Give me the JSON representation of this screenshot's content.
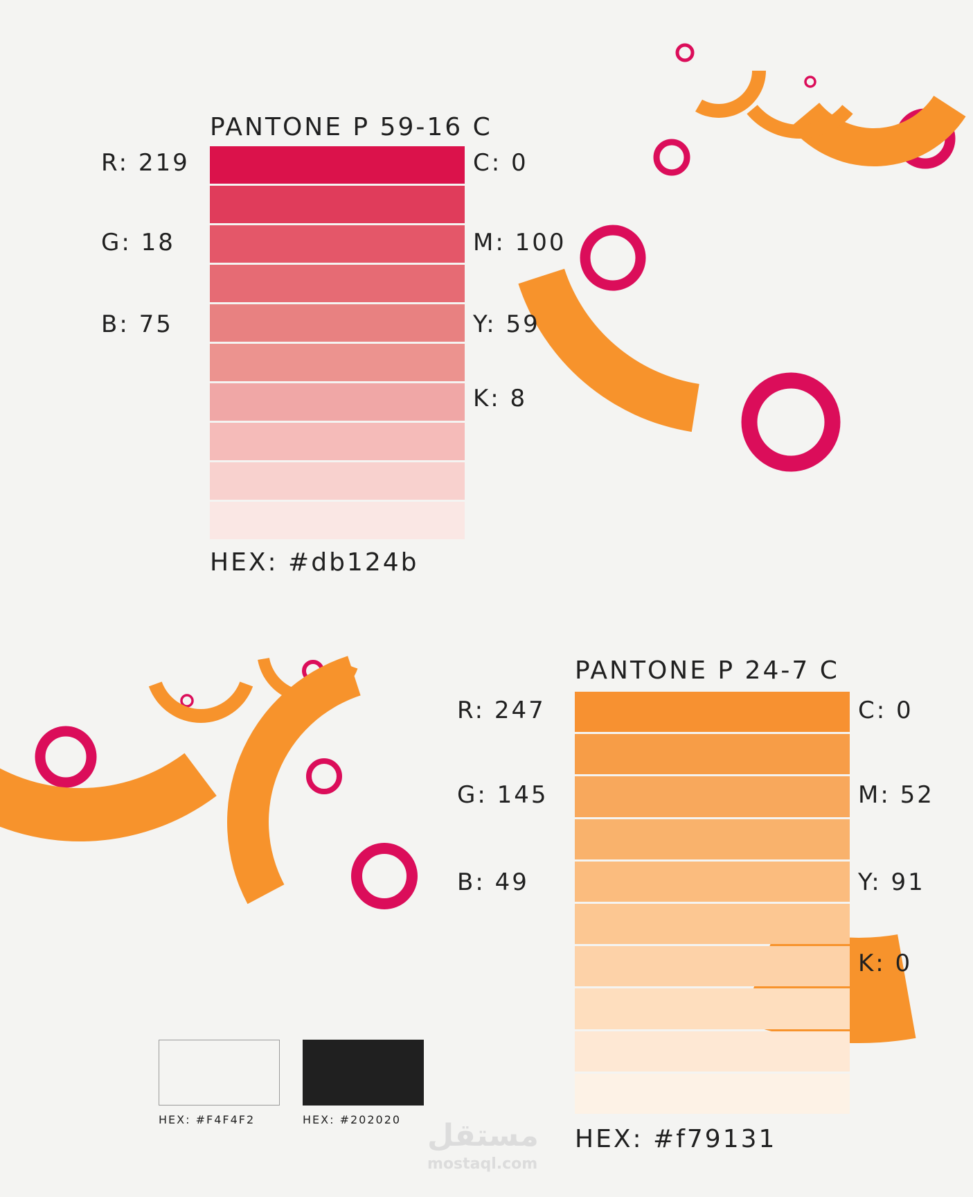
{
  "background_color": "#f4f4f2",
  "palette_primary": {
    "title": "PANTONE P 59-16 C",
    "rgb": [
      "R: 219",
      "G: 18",
      "B: 75"
    ],
    "cmyk": [
      "C: 0",
      "M: 100",
      "Y: 59",
      "K: 8"
    ],
    "hex_label": "HEX: #db124b",
    "shades": [
      "#db124b",
      "#e03c5b",
      "#e45769",
      "#e66b74",
      "#e88181",
      "#ec938f",
      "#f0a7a6",
      "#f5bbb9",
      "#f8d1ce",
      "#fae7e4"
    ]
  },
  "palette_secondary": {
    "title": "PANTONE P 24-7 C",
    "rgb": [
      "R: 247",
      "G: 145",
      "B: 49"
    ],
    "cmyk": [
      "C: 0",
      "M: 52",
      "Y: 91",
      "K: 0"
    ],
    "hex_label": "HEX: #f79131",
    "shades": [
      "#f79131",
      "#f79d47",
      "#f8a85c",
      "#f9b26c",
      "#fbbc7e",
      "#fcc792",
      "#fdd2a8",
      "#fedebe",
      "#fee8d4",
      "#fdf2e6"
    ]
  },
  "neutrals": [
    {
      "label": "HEX: #F4F4F2",
      "color": "#f4f4f2",
      "border": "#9a9a9a"
    },
    {
      "label": "HEX: #202020",
      "color": "#202020",
      "border": "#202020"
    }
  ],
  "decoration_colors": {
    "ring": "#db0d5a",
    "arc": "#f7932c"
  },
  "watermark": {
    "logo": "مستقل",
    "url": "mostaql.com"
  }
}
